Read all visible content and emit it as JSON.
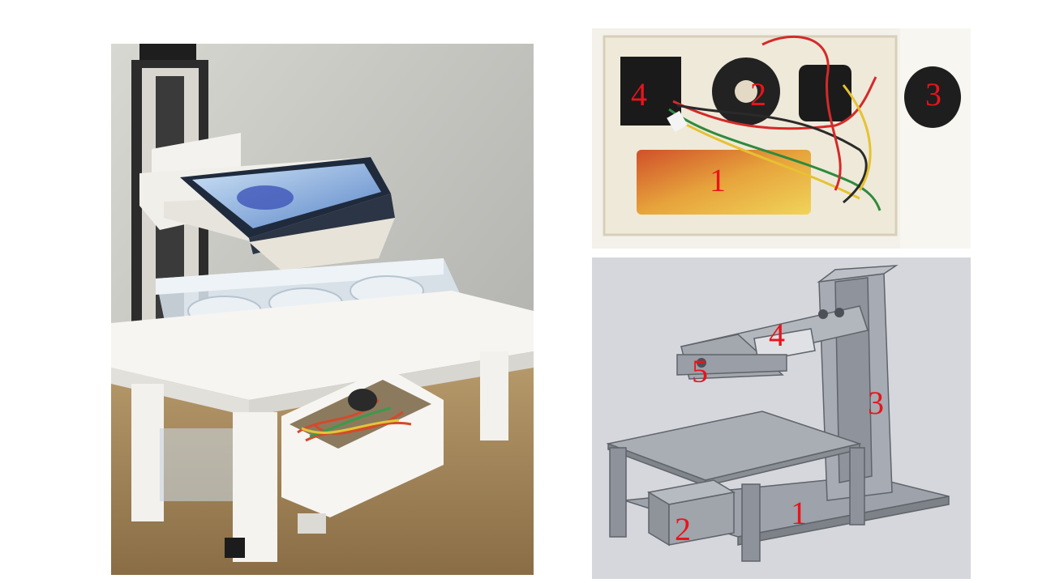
{
  "figure": {
    "photo_panel": {
      "kind": "photograph of 3D-printed smartphone imaging rig with well plate"
    },
    "electronics_panel": {
      "labels": [
        "4",
        "2",
        "3",
        "1"
      ]
    },
    "cad_panel": {
      "labels": [
        "4",
        "5",
        "3",
        "1",
        "2"
      ]
    },
    "colors": {
      "label_red": "#e8141c",
      "cad_gray": "#9fa3ab"
    }
  }
}
